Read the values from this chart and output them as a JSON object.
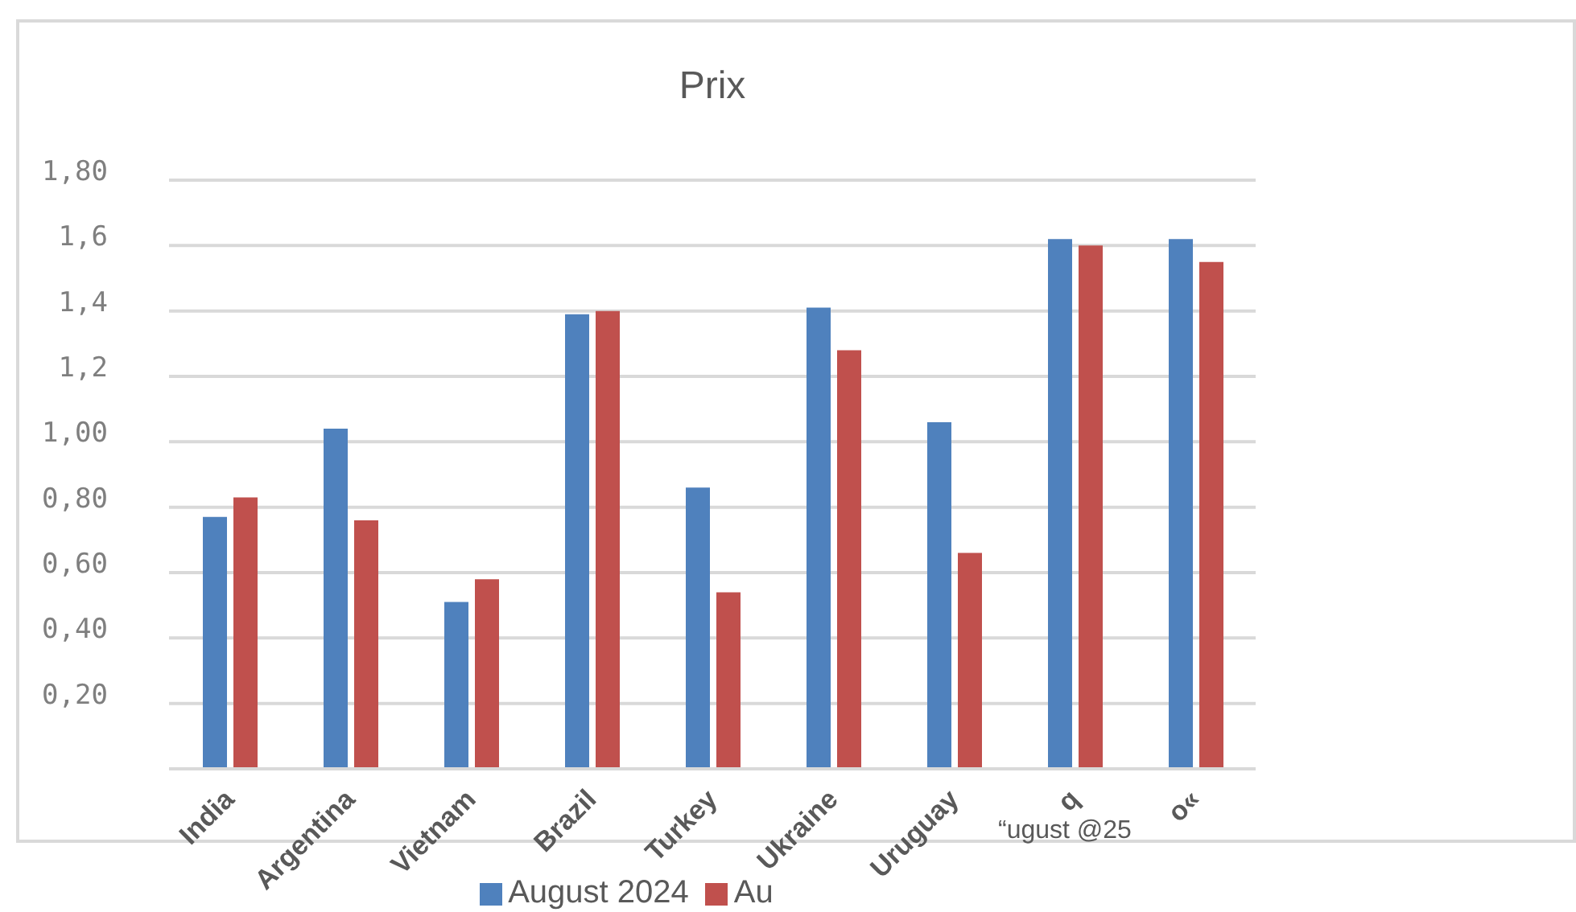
{
  "chart_data": {
    "type": "bar",
    "title": "Prix",
    "categories": [
      "India",
      "Argentina",
      "Vietnam",
      "Brazil",
      "Turkey",
      "Ukraine",
      "Uruguay",
      "q",
      "o«"
    ],
    "series": [
      {
        "name": "August 2024",
        "color": "#4f81bd",
        "values": [
          0.77,
          1.04,
          0.51,
          1.39,
          0.86,
          1.41,
          1.06,
          1.62,
          1.62
        ]
      },
      {
        "name": "Au",
        "color": "#c0504d",
        "values": [
          0.83,
          0.76,
          0.58,
          1.4,
          0.54,
          1.28,
          0.66,
          1.6,
          1.55
        ]
      }
    ],
    "ylim": [
      0,
      1.8
    ],
    "yticks": [
      {
        "value": 0,
        "label": null
      },
      {
        "value": 0.2,
        "label": "0,20"
      },
      {
        "value": 0.4,
        "label": "0,40"
      },
      {
        "value": 0.6,
        "label": "0,60"
      },
      {
        "value": 0.8,
        "label": "0,80"
      },
      {
        "value": 1.0,
        "label": "1,00"
      },
      {
        "value": 1.2,
        "label": "1,2"
      },
      {
        "value": 1.4,
        "label": "1,4"
      },
      {
        "value": 1.6,
        "label": "1,6"
      },
      {
        "value": 1.8,
        "label": "1,80"
      }
    ],
    "grid": "y",
    "legend": "bottom",
    "annotations": [
      "“ugust @25"
    ]
  }
}
